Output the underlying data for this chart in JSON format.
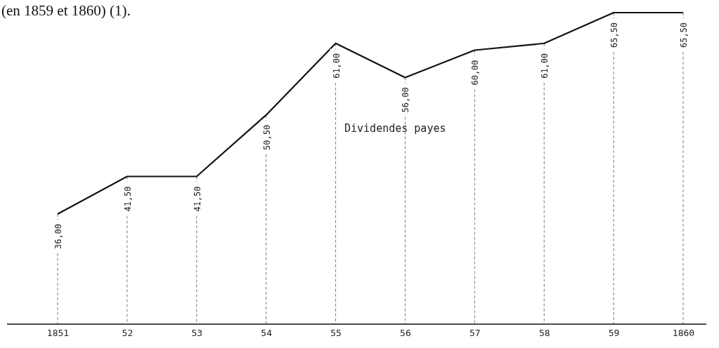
{
  "chart_data": {
    "type": "line",
    "title": "(en 1859 et 1860) (1).",
    "categories": [
      "1851",
      "52",
      "53",
      "54",
      "55",
      "56",
      "57",
      "58",
      "59",
      "1860"
    ],
    "series": [
      {
        "name": "Dividendes payes",
        "color": "#111111",
        "values": [
          36,
          41.5,
          41.5,
          50.5,
          61,
          56,
          60,
          61,
          65.5,
          65.5
        ],
        "value_labels": [
          "36,00",
          "41,50",
          "41,50",
          "50,50",
          "61,00",
          "56,00",
          "60,00",
          "61,00",
          "65,50",
          "65,50"
        ]
      }
    ],
    "tick_labels": "x",
    "grid": "x",
    "marker": "none",
    "line_style": "solid"
  }
}
